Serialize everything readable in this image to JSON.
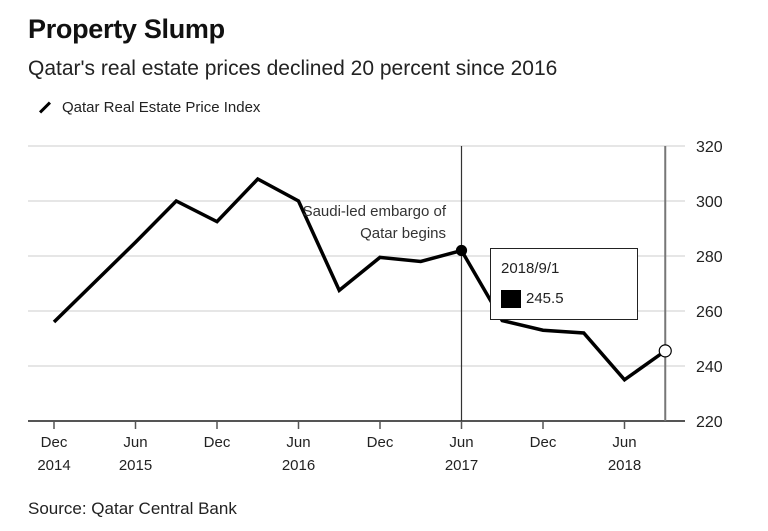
{
  "header": {
    "title": "Property Slump",
    "subtitle": "Qatar's real estate prices declined 20 percent since 2016"
  },
  "legend": {
    "label": "Qatar Real Estate Price Index",
    "icon": "line-swatch-icon"
  },
  "annotation": {
    "line1": "Saudi-led embargo of",
    "line2": "Qatar begins"
  },
  "tooltip": {
    "date": "2018/9/1",
    "value": "245.5"
  },
  "source": "Source: Qatar Central Bank",
  "colors": {
    "line": "#000000",
    "grid": "#dddddd",
    "axis": "#555555"
  },
  "chart_data": {
    "type": "line",
    "title": "Property Slump",
    "subtitle": "Qatar's real estate prices declined 20 percent since 2016",
    "xlabel": "",
    "ylabel": "",
    "ylim": [
      220,
      320
    ],
    "yticks": [
      220,
      240,
      260,
      280,
      300,
      320
    ],
    "y_axis_side": "right",
    "grid": true,
    "legend_position": "top-left",
    "x_ticks": [
      {
        "q": 0,
        "line1": "Dec",
        "line2": "2014"
      },
      {
        "q": 2,
        "line1": "Jun",
        "line2": "2015"
      },
      {
        "q": 4,
        "line1": "Dec",
        "line2": ""
      },
      {
        "q": 6,
        "line1": "Jun",
        "line2": "2016"
      },
      {
        "q": 8,
        "line1": "Dec",
        "line2": ""
      },
      {
        "q": 10,
        "line1": "Jun",
        "line2": "2017"
      },
      {
        "q": 12,
        "line1": "Dec",
        "line2": ""
      },
      {
        "q": 14,
        "line1": "Jun",
        "line2": "2018"
      }
    ],
    "series": [
      {
        "name": "Qatar Real Estate Price Index",
        "x": [
          "2014-12",
          "2015-03",
          "2015-06",
          "2015-09",
          "2015-12",
          "2016-03",
          "2016-06",
          "2016-09",
          "2016-12",
          "2017-03",
          "2017-06",
          "2017-09",
          "2017-12",
          "2018-03",
          "2018-06",
          "2018-09"
        ],
        "values": [
          256,
          270.5,
          285,
          300,
          292.5,
          308,
          300,
          267.5,
          279.5,
          278,
          282,
          256.5,
          253,
          252,
          235,
          245.5
        ]
      }
    ],
    "markers": [
      {
        "q": 10,
        "value": 282,
        "style": "filled",
        "vline": true,
        "label": "Saudi-led embargo of Qatar begins"
      },
      {
        "q": 15,
        "value": 245.5,
        "style": "hollow",
        "vline": true,
        "label": "2018/9/1"
      }
    ]
  }
}
